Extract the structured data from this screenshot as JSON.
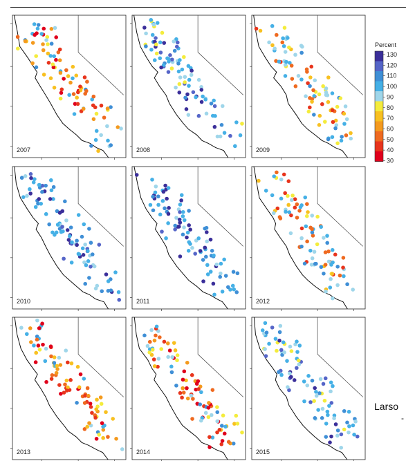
{
  "figure": {
    "legend": {
      "title": "Percent",
      "ticks": [
        "130",
        "120",
        "110",
        "100",
        "90",
        "80",
        "70",
        "60",
        "50",
        "40",
        "30"
      ],
      "colors": [
        "#3b2f9a",
        "#5565c8",
        "#3f8fd6",
        "#45b0e6",
        "#9fd6ea",
        "#f4ec3c",
        "#f8c020",
        "#f49a1e",
        "#ef6a20",
        "#e8341c",
        "#e0001c"
      ]
    },
    "panels": [
      {
        "year": "2007",
        "palette": "dry"
      },
      {
        "year": "2008",
        "palette": "wet"
      },
      {
        "year": "2009",
        "palette": "mixed"
      },
      {
        "year": "2010",
        "palette": "verywet"
      },
      {
        "year": "2011",
        "palette": "verywet"
      },
      {
        "year": "2012",
        "palette": "mixed"
      },
      {
        "year": "2013",
        "palette": "dry"
      },
      {
        "year": "2014",
        "palette": "dry"
      },
      {
        "year": "2015",
        "palette": "wet"
      }
    ],
    "credit": "Larso"
  }
}
